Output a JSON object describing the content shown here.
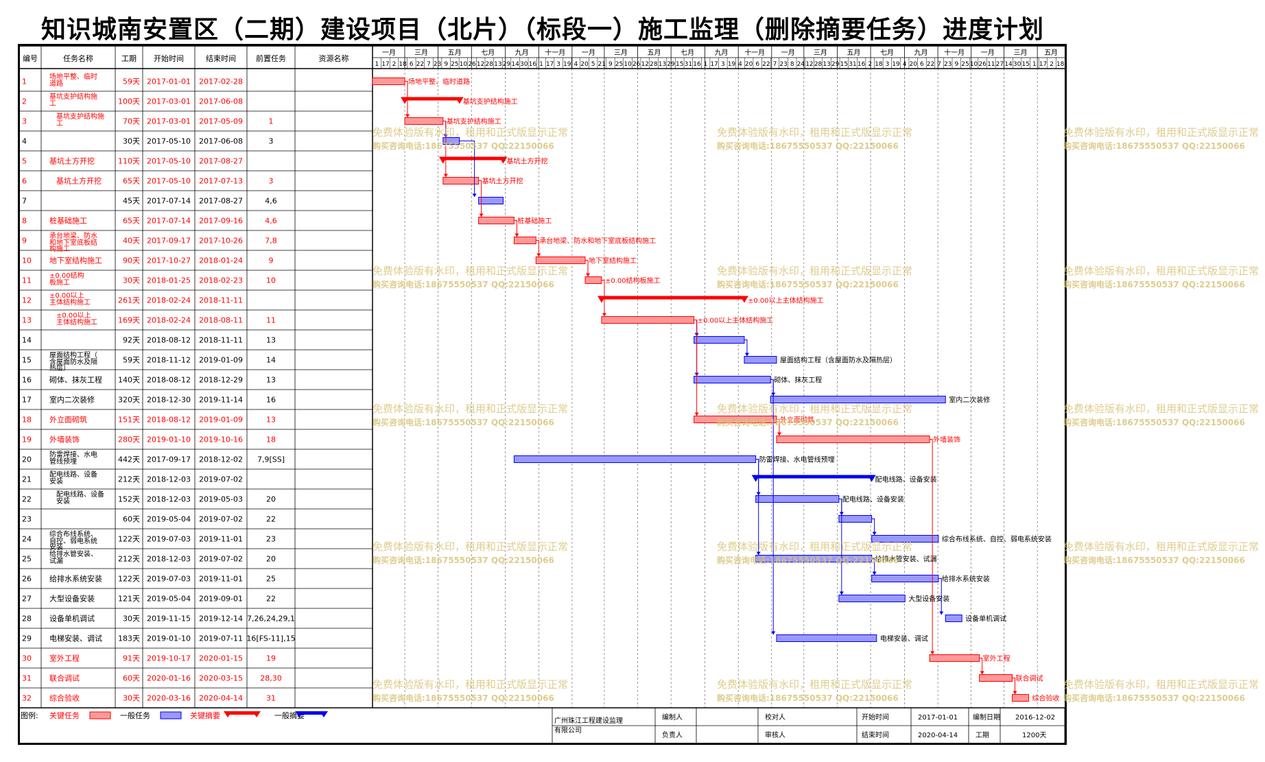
{
  "title": "知识城南安置区（二期）建设项目（北片）（标段一）施工监理（删除摘要任务）进度计划",
  "columns": [
    "编号",
    "任务名称",
    "工期",
    "开始时间",
    "结束时间",
    "前置任务",
    "资源名称"
  ],
  "months": [
    "一月",
    "三月",
    "五月",
    "七月",
    "九月",
    "十一月",
    "一月",
    "三月",
    "五月",
    "七月",
    "九月",
    "十一月",
    "一月",
    "三月",
    "五月",
    "七月",
    "九月",
    "十一月",
    "一月",
    "三月",
    "五月"
  ],
  "days": [
    "1",
    "17",
    "2",
    "18",
    "6",
    "22",
    "7",
    "23",
    "9",
    "25",
    "10",
    "26",
    "12",
    "28",
    "13",
    "29",
    "14",
    "30",
    "16",
    "1",
    "17",
    "3",
    "19",
    "4",
    "20",
    "5",
    "21",
    "9",
    "25",
    "10",
    "26",
    "12",
    "28",
    "13",
    "29",
    "15",
    "31",
    "16",
    "1",
    "17",
    "3",
    "19",
    "4",
    "20",
    "6",
    "22",
    "7",
    "23",
    "8",
    "24",
    "12",
    "28",
    "13",
    "29",
    "15",
    "31",
    "16",
    "2",
    "18",
    "3",
    "19",
    "4",
    "20",
    "6",
    "22",
    "7",
    "23",
    "9",
    "25",
    "10",
    "26",
    "11",
    "27",
    "14",
    "30",
    "15",
    "1",
    "17",
    "2",
    "18"
  ],
  "tasks": [
    {
      "id": "1",
      "name": "场地平整、临时道路",
      "dur": "59天",
      "start": "2017-01-01",
      "end": "2017-02-28",
      "pred": "",
      "res": "",
      "critical": true,
      "summary": false,
      "label": "场地平整、临时道路"
    },
    {
      "id": "2",
      "name": "基坑支护结构施工",
      "dur": "100天",
      "start": "2017-03-01",
      "end": "2017-06-08",
      "pred": "",
      "res": "",
      "critical": true,
      "summary": true,
      "label": "基坑支护结构施工"
    },
    {
      "id": "3",
      "name": "基坑支护结构施工",
      "dur": "70天",
      "start": "2017-03-01",
      "end": "2017-05-09",
      "pred": "1",
      "res": "",
      "critical": true,
      "summary": false,
      "label": "基坑支护结构施工",
      "indent": true
    },
    {
      "id": "4",
      "name": "",
      "dur": "30天",
      "start": "2017-05-10",
      "end": "2017-06-08",
      "pred": "3",
      "res": "",
      "critical": false,
      "summary": false,
      "label": ""
    },
    {
      "id": "5",
      "name": "基坑土方开挖",
      "dur": "110天",
      "start": "2017-05-10",
      "end": "2017-08-27",
      "pred": "",
      "res": "",
      "critical": true,
      "summary": true,
      "label": "基坑土方开挖"
    },
    {
      "id": "6",
      "name": "基坑土方开挖",
      "dur": "65天",
      "start": "2017-05-10",
      "end": "2017-07-13",
      "pred": "3",
      "res": "",
      "critical": true,
      "summary": false,
      "label": "基坑土方开挖",
      "indent": true
    },
    {
      "id": "7",
      "name": "",
      "dur": "45天",
      "start": "2017-07-14",
      "end": "2017-08-27",
      "pred": "4,6",
      "res": "",
      "critical": false,
      "summary": false,
      "label": ""
    },
    {
      "id": "8",
      "name": "桩基础施工",
      "dur": "65天",
      "start": "2017-07-14",
      "end": "2017-09-16",
      "pred": "4,6",
      "res": "",
      "critical": true,
      "summary": false,
      "label": "桩基础施工"
    },
    {
      "id": "9",
      "name": "承台地梁、防水和地下室底板结构施工",
      "dur": "40天",
      "start": "2017-09-17",
      "end": "2017-10-26",
      "pred": "7,8",
      "res": "",
      "critical": true,
      "summary": false,
      "label": "承台地梁、防水和地下室底板结构施工"
    },
    {
      "id": "10",
      "name": "地下室结构施工",
      "dur": "90天",
      "start": "2017-10-27",
      "end": "2018-01-24",
      "pred": "9",
      "res": "",
      "critical": true,
      "summary": false,
      "label": "地下室结构施工"
    },
    {
      "id": "11",
      "name": "±0.00结构板施工",
      "dur": "30天",
      "start": "2018-01-25",
      "end": "2018-02-23",
      "pred": "10",
      "res": "",
      "critical": true,
      "summary": false,
      "label": "±0.00结构板施工"
    },
    {
      "id": "12",
      "name": "±0.00以上主体结构施工",
      "dur": "261天",
      "start": "2018-02-24",
      "end": "2018-11-11",
      "pred": "",
      "res": "",
      "critical": true,
      "summary": true,
      "label": "±0.00以上主体结构施工"
    },
    {
      "id": "13",
      "name": "±0.00以上主体结构施工",
      "dur": "169天",
      "start": "2018-02-24",
      "end": "2018-08-11",
      "pred": "11",
      "res": "",
      "critical": true,
      "summary": false,
      "label": "±0.00以上主体结构施工",
      "indent": true
    },
    {
      "id": "14",
      "name": "",
      "dur": "92天",
      "start": "2018-08-12",
      "end": "2018-11-11",
      "pred": "13",
      "res": "",
      "critical": false,
      "summary": false,
      "label": ""
    },
    {
      "id": "15",
      "name": "屋面结构工程（含屋面防水及隔热层）",
      "dur": "59天",
      "start": "2018-11-12",
      "end": "2019-01-09",
      "pred": "14",
      "res": "",
      "critical": false,
      "summary": false,
      "label": "屋面结构工程（含屋面防水及隔热层）"
    },
    {
      "id": "16",
      "name": "砌体、抹灰工程",
      "dur": "140天",
      "start": "2018-08-12",
      "end": "2018-12-29",
      "pred": "13",
      "res": "",
      "critical": false,
      "summary": false,
      "label": "砌体、抹灰工程"
    },
    {
      "id": "17",
      "name": "室内二次装修",
      "dur": "320天",
      "start": "2018-12-30",
      "end": "2019-11-14",
      "pred": "16",
      "res": "",
      "critical": false,
      "summary": false,
      "label": "室内二次装修"
    },
    {
      "id": "18",
      "name": "外立面砌筑",
      "dur": "151天",
      "start": "2018-08-12",
      "end": "2019-01-09",
      "pred": "13",
      "res": "",
      "critical": true,
      "summary": false,
      "label": "外立面砌筑"
    },
    {
      "id": "19",
      "name": "外墙装饰",
      "dur": "280天",
      "start": "2019-01-10",
      "end": "2019-10-16",
      "pred": "18",
      "res": "",
      "critical": true,
      "summary": false,
      "label": "外墙装饰"
    },
    {
      "id": "20",
      "name": "防雷焊接、水电管线预埋",
      "dur": "442天",
      "start": "2017-09-17",
      "end": "2018-12-02",
      "pred": "7,9[SS]",
      "res": "",
      "critical": false,
      "summary": false,
      "label": "防雷焊接、水电管线预埋"
    },
    {
      "id": "21",
      "name": "配电线路、设备安装",
      "dur": "212天",
      "start": "2018-12-03",
      "end": "2019-07-02",
      "pred": "",
      "res": "",
      "critical": false,
      "summary": true,
      "label": "配电线路、设备安装"
    },
    {
      "id": "22",
      "name": "配电线路、设备安装",
      "dur": "152天",
      "start": "2018-12-03",
      "end": "2019-05-03",
      "pred": "20",
      "res": "",
      "critical": false,
      "summary": false,
      "label": "配电线路、设备安装",
      "indent": true
    },
    {
      "id": "23",
      "name": "",
      "dur": "60天",
      "start": "2019-05-04",
      "end": "2019-07-02",
      "pred": "22",
      "res": "",
      "critical": false,
      "summary": false,
      "label": ""
    },
    {
      "id": "24",
      "name": "综合布线系统、自控、弱电系统安装",
      "dur": "122天",
      "start": "2019-07-03",
      "end": "2019-11-01",
      "pred": "23",
      "res": "",
      "critical": false,
      "summary": false,
      "label": "综合布线系统、自控、弱电系统安装"
    },
    {
      "id": "25",
      "name": "给排水管安装、试漏",
      "dur": "212天",
      "start": "2018-12-03",
      "end": "2019-07-02",
      "pred": "20",
      "res": "",
      "critical": false,
      "summary": false,
      "label": "给排水管安装、试漏"
    },
    {
      "id": "26",
      "name": "给排水系统安装",
      "dur": "122天",
      "start": "2019-07-03",
      "end": "2019-11-01",
      "pred": "25",
      "res": "",
      "critical": false,
      "summary": false,
      "label": "给排水系统安装"
    },
    {
      "id": "27",
      "name": "大型设备安装",
      "dur": "121天",
      "start": "2019-05-04",
      "end": "2019-09-01",
      "pred": "22",
      "res": "",
      "critical": false,
      "summary": false,
      "label": "大型设备安装"
    },
    {
      "id": "28",
      "name": "设备单机调试",
      "dur": "30天",
      "start": "2019-11-15",
      "end": "2019-12-14",
      "pred": "7,26,24,29,1",
      "res": "",
      "critical": false,
      "summary": false,
      "label": "设备单机调试"
    },
    {
      "id": "29",
      "name": "电梯安装、调试",
      "dur": "183天",
      "start": "2019-01-10",
      "end": "2019-07-11",
      "pred": "16[FS-11],15",
      "res": "",
      "critical": false,
      "summary": false,
      "label": "电梯安装、调试"
    },
    {
      "id": "30",
      "name": "室外工程",
      "dur": "91天",
      "start": "2019-10-17",
      "end": "2020-01-15",
      "pred": "19",
      "res": "",
      "critical": true,
      "summary": false,
      "label": "室外工程"
    },
    {
      "id": "31",
      "name": "联合调试",
      "dur": "60天",
      "start": "2020-01-16",
      "end": "2020-03-15",
      "pred": "28,30",
      "res": "",
      "critical": true,
      "summary": false,
      "label": "联合调试"
    },
    {
      "id": "32",
      "name": "综合验收",
      "dur": "30天",
      "start": "2020-03-16",
      "end": "2020-04-14",
      "pred": "31",
      "res": "",
      "critical": true,
      "summary": false,
      "label": "综合验收"
    }
  ],
  "legend": {
    "prefix": "图例:",
    "critical_task": "关键任务",
    "normal_task": "一般任务",
    "critical_summary": "关键摘要",
    "normal_summary": "一般摘要"
  },
  "footer": {
    "company": "广州珠江工程建设监理有限公司",
    "editor_label": "编制人",
    "checker_label": "校对人",
    "owner_label": "负责人",
    "reviewer_label": "审核人",
    "start_label": "开始时间",
    "start_value": "2017-01-01",
    "end_label": "结束时间",
    "end_value": "2020-04-14",
    "date_label": "编制日期",
    "date_value": "2016-12-02",
    "dur_label": "工期",
    "dur_value": "1200天"
  },
  "watermark": {
    "line1": "免费体验版有水印，租用和正式版显示正常",
    "line2": "购买咨询电话:18675550537 QQ:22150066"
  },
  "colors": {
    "critical": "#ff0000",
    "critical_fill": "#ff9999",
    "normal": "#0000ee",
    "normal_fill": "#9999ff",
    "watermark": "#d9c47a"
  }
}
